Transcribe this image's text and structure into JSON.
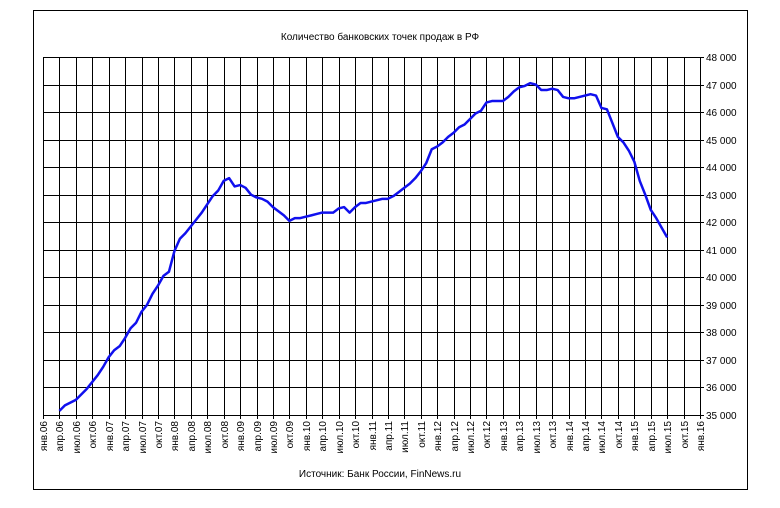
{
  "chart_data": {
    "type": "line",
    "title": "Количество банковских точек продаж в РФ",
    "source": "Источник: Банк России, FinNews.ru",
    "categories": [
      "янв.06",
      null,
      null,
      "апр.06",
      null,
      null,
      "июл.06",
      null,
      null,
      "окт.06",
      null,
      null,
      "янв.07",
      null,
      null,
      "апр.07",
      null,
      null,
      "июл.07",
      null,
      null,
      "окт.07",
      null,
      null,
      "янв.08",
      null,
      null,
      "апр.08",
      null,
      null,
      "июл.08",
      null,
      null,
      "окт.08",
      null,
      null,
      "янв.09",
      null,
      null,
      "апр.09",
      null,
      null,
      "июл.09",
      null,
      null,
      "окт.09",
      null,
      null,
      "янв.10",
      null,
      null,
      "апр.10",
      null,
      null,
      "июл.10",
      null,
      null,
      "окт.10",
      null,
      null,
      "янв.11",
      null,
      null,
      "апр.11",
      null,
      null,
      "июл.11",
      null,
      null,
      "окт.11",
      null,
      null,
      "янв.12",
      null,
      null,
      "апр.12",
      null,
      null,
      "июл.12",
      null,
      null,
      "окт.12",
      null,
      null,
      "янв.13",
      null,
      null,
      "апр.13",
      null,
      null,
      "июл.13",
      null,
      null,
      "окт.13",
      null,
      null,
      "янв.14",
      null,
      null,
      "апр.14",
      null,
      null,
      "июл.14",
      null,
      null,
      "окт.14",
      null,
      null,
      "янв.15",
      null,
      null,
      "апр.15",
      null,
      null,
      "июл.15",
      null,
      null,
      "окт.15",
      null,
      null,
      "янв.16"
    ],
    "values": [
      null,
      null,
      null,
      35150,
      35350,
      35450,
      35550,
      35750,
      35950,
      36200,
      36450,
      36750,
      37100,
      37350,
      37500,
      37800,
      38150,
      38350,
      38750,
      39000,
      39400,
      39700,
      40050,
      40200,
      40950,
      41400,
      41600,
      41850,
      42100,
      42350,
      42650,
      42950,
      43150,
      43500,
      43600,
      43300,
      43350,
      43250,
      43000,
      42900,
      42850,
      42750,
      42550,
      42400,
      42250,
      42050,
      42150,
      42150,
      42200,
      42250,
      42300,
      42350,
      42350,
      42350,
      42500,
      42550,
      42350,
      42550,
      42700,
      42700,
      42750,
      42800,
      42850,
      42850,
      42950,
      43100,
      43250,
      43400,
      43600,
      43850,
      44150,
      44650,
      44750,
      44900,
      45100,
      45250,
      45450,
      45550,
      45750,
      45950,
      46050,
      46350,
      46400,
      46400,
      46400,
      46550,
      46750,
      46900,
      46950,
      47050,
      47000,
      46800,
      46800,
      46850,
      46800,
      46550,
      46500,
      46500,
      46550,
      46600,
      46650,
      46600,
      46150,
      46100,
      45600,
      45100,
      44900,
      44600,
      44200,
      43500,
      43000,
      42450,
      42150,
      41800,
      41450,
      null,
      null,
      null,
      null,
      null,
      null
    ],
    "color": "#1010ee",
    "ylim": [
      35000,
      48000
    ],
    "yticks": [
      {
        "value": 35000,
        "label": "35 000"
      },
      {
        "value": 36000,
        "label": "36 000"
      },
      {
        "value": 37000,
        "label": "37 000"
      },
      {
        "value": 38000,
        "label": "38 000"
      },
      {
        "value": 39000,
        "label": "39 000"
      },
      {
        "value": 40000,
        "label": "40 000"
      },
      {
        "value": 41000,
        "label": "41 000"
      },
      {
        "value": 42000,
        "label": "42 000"
      },
      {
        "value": 43000,
        "label": "43 000"
      },
      {
        "value": 44000,
        "label": "44 000"
      },
      {
        "value": 45000,
        "label": "45 000"
      },
      {
        "value": 46000,
        "label": "46 000"
      },
      {
        "value": 47000,
        "label": "47 000"
      },
      {
        "value": 48000,
        "label": "48 000"
      }
    ],
    "grid": true
  }
}
